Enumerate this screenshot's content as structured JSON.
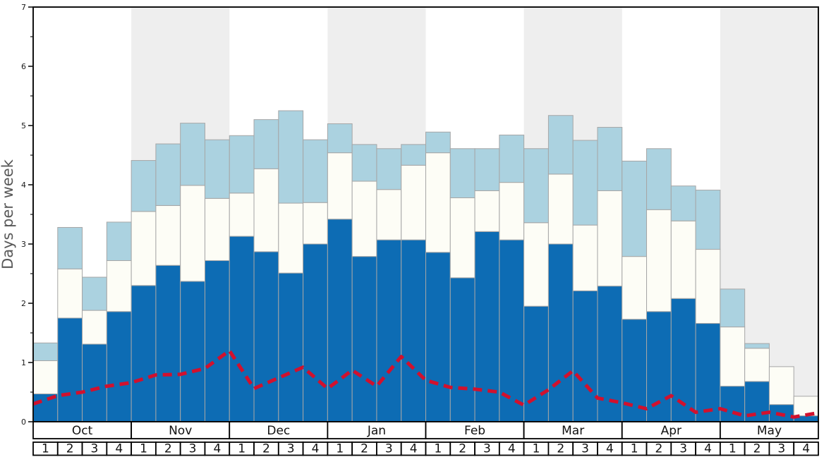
{
  "chart_data": {
    "type": "bar",
    "subtype": "stacked-bar-with-dashed-line-overlay",
    "title": "",
    "ylabel": "Days per week",
    "xlabel": "",
    "ylim": [
      0,
      7
    ],
    "yticks": [
      0,
      1,
      2,
      3,
      4,
      5,
      6,
      7
    ],
    "minor_tick_step": 0.5,
    "grid": false,
    "legend_position": "none",
    "months": [
      "Oct",
      "Nov",
      "Dec",
      "Jan",
      "Feb",
      "Mar",
      "Apr",
      "May"
    ],
    "weeks_per_month": 4,
    "week_labels": [
      "1",
      "2",
      "3",
      "4"
    ],
    "shaded_months": [
      "Nov",
      "Jan",
      "Mar",
      "May"
    ],
    "categories": [
      "Oct 1",
      "Oct 2",
      "Oct 3",
      "Oct 4",
      "Nov 1",
      "Nov 2",
      "Nov 3",
      "Nov 4",
      "Dec 1",
      "Dec 2",
      "Dec 3",
      "Dec 4",
      "Jan 1",
      "Jan 2",
      "Jan 3",
      "Jan 4",
      "Feb 1",
      "Feb 2",
      "Feb 3",
      "Feb 4",
      "Mar 1",
      "Mar 2",
      "Mar 3",
      "Mar 4",
      "Apr 1",
      "Apr 2",
      "Apr 3",
      "Apr 4",
      "May 1",
      "May 2",
      "May 3",
      "May 4"
    ],
    "series": [
      {
        "name": "dark-blue-days",
        "color": "#0d6cb4",
        "stacking": "cumulative-top",
        "values": [
          0.47,
          1.75,
          1.31,
          1.86,
          2.3,
          2.64,
          2.37,
          2.72,
          3.13,
          2.87,
          2.51,
          3.0,
          3.42,
          2.79,
          3.07,
          3.07,
          2.86,
          2.43,
          3.21,
          3.07,
          1.95,
          3.0,
          2.21,
          2.29,
          1.73,
          1.86,
          2.08,
          1.66,
          0.6,
          0.68,
          0.29,
          0.1
        ]
      },
      {
        "name": "white-days",
        "color": "#fdfdf6",
        "stacking": "cumulative-top",
        "values": [
          1.03,
          2.58,
          1.88,
          2.72,
          3.55,
          3.65,
          3.99,
          3.77,
          3.86,
          4.27,
          3.69,
          3.7,
          4.54,
          4.06,
          3.92,
          4.33,
          4.54,
          3.78,
          3.9,
          4.04,
          3.36,
          4.18,
          3.32,
          3.9,
          2.79,
          3.58,
          3.39,
          2.91,
          1.6,
          1.24,
          0.93,
          0.43
        ]
      },
      {
        "name": "light-blue-days",
        "color": "#abd2e0",
        "stacking": "cumulative-top",
        "values": [
          1.33,
          3.28,
          2.44,
          3.37,
          4.41,
          4.69,
          5.04,
          4.76,
          4.83,
          5.1,
          5.25,
          4.76,
          5.03,
          4.68,
          4.61,
          4.68,
          4.89,
          4.61,
          4.61,
          4.84,
          4.61,
          5.17,
          4.75,
          4.97,
          4.4,
          4.61,
          3.98,
          3.91,
          2.24,
          1.32,
          0.93,
          0.43
        ]
      }
    ],
    "line_series": {
      "name": "red-dashed-line",
      "color": "#d1112e",
      "style": "dashed",
      "points_at": "week-boundaries",
      "values": [
        0.3,
        0.44,
        0.5,
        0.6,
        0.66,
        0.79,
        0.8,
        0.9,
        1.2,
        0.56,
        0.74,
        0.92,
        0.56,
        0.87,
        0.6,
        1.1,
        0.7,
        0.58,
        0.55,
        0.5,
        0.28,
        0.54,
        0.86,
        0.4,
        0.32,
        0.22,
        0.44,
        0.16,
        0.22,
        0.1,
        0.16,
        0.08,
        0.15
      ]
    },
    "colors": {
      "band_shade": "#eeeeee",
      "bar_border": "#a6a6a6",
      "frame": "#111111",
      "axis_label": "#595959",
      "tick_label": "#1a1a1a",
      "cell_border": "#000000",
      "cell_fill": "#ffffff"
    }
  }
}
